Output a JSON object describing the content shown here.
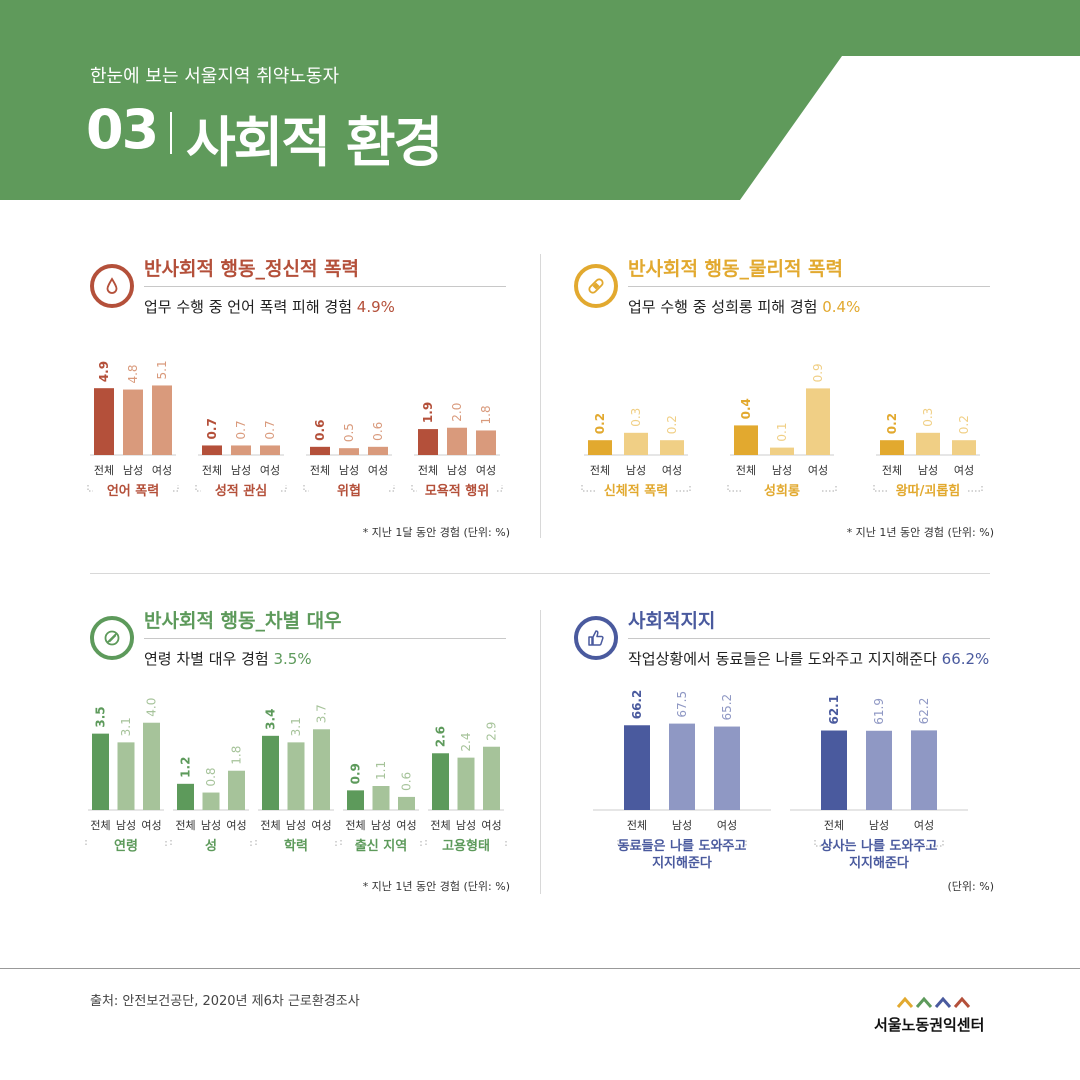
{
  "header": {
    "subtitle": "한눈에 보는 서울지역 취약노동자",
    "number": "03",
    "title": "사회적 환경"
  },
  "colors": {
    "header_green": "#5f9a5b",
    "red_dark": "#b4503a",
    "red_light": "#d99a7c",
    "yellow_dark": "#e2a92f",
    "yellow_light": "#f0cf85",
    "green_dark": "#5d9a5b",
    "green_light": "#a6c39a",
    "blue_dark": "#4a5a9e",
    "blue_light": "#8f98c4"
  },
  "panels": [
    {
      "id": "mental",
      "icon": "drop-icon",
      "color": "#b4503a",
      "title": "반사회적 행동_정신적 폭력",
      "stat_text": "업무 수행 중 언어 폭력 피해 경험",
      "stat_value": "4.9%",
      "note": "* 지난 1달 동안 경험 (단위: %)"
    },
    {
      "id": "physical",
      "icon": "bandage-icon",
      "color": "#e2a92f",
      "title": "반사회적 행동_물리적 폭력",
      "stat_text": "업무 수행 중 성희롱 피해 경험",
      "stat_value": "0.4%",
      "note": "* 지난 1년 동안 경험 (단위: %)"
    },
    {
      "id": "discrimination",
      "icon": "prohibit-icon",
      "color": "#5d9a5b",
      "title": "반사회적 행동_차별 대우",
      "stat_text": "연령 차별 대우 경험",
      "stat_value": "3.5%",
      "note": "* 지난 1년 동안 경험 (단위: %)"
    },
    {
      "id": "support",
      "icon": "thumbs-up-icon",
      "color": "#4a5a9e",
      "title": "사회적지지",
      "stat_text": "작업상황에서 동료들은 나를 도와주고 지지해준다",
      "stat_value": "66.2%",
      "note": "(단위: %)"
    }
  ],
  "chart_data": [
    {
      "type": "bar",
      "series_labels": [
        "전체",
        "남성",
        "여성"
      ],
      "groups": [
        {
          "label": [
            "언어 폭력"
          ],
          "values": [
            4.9,
            4.8,
            5.1
          ]
        },
        {
          "label": [
            "성적 관심"
          ],
          "values": [
            0.7,
            0.7,
            0.7
          ]
        },
        {
          "label": [
            "위협"
          ],
          "values": [
            0.6,
            0.5,
            0.6
          ]
        },
        {
          "label": [
            "모욕적 행위"
          ],
          "values": [
            1.9,
            2.0,
            1.8
          ]
        }
      ],
      "ylim": [
        0,
        5.5
      ]
    },
    {
      "type": "bar",
      "series_labels": [
        "전체",
        "남성",
        "여성"
      ],
      "groups": [
        {
          "label": [
            "신체적 폭력"
          ],
          "values": [
            0.2,
            0.3,
            0.2
          ]
        },
        {
          "label": [
            "성희롱"
          ],
          "values": [
            0.4,
            0.1,
            0.9
          ]
        },
        {
          "label": [
            "왕따/괴롭힘"
          ],
          "values": [
            0.2,
            0.3,
            0.2
          ]
        }
      ],
      "ylim": [
        0,
        1.0
      ]
    },
    {
      "type": "bar",
      "series_labels": [
        "전체",
        "남성",
        "여성"
      ],
      "groups": [
        {
          "label": [
            "연령"
          ],
          "values": [
            3.5,
            3.1,
            4.0
          ]
        },
        {
          "label": [
            "성"
          ],
          "values": [
            1.2,
            0.8,
            1.8
          ]
        },
        {
          "label": [
            "학력"
          ],
          "values": [
            3.4,
            3.1,
            3.7
          ]
        },
        {
          "label": [
            "출신 지역"
          ],
          "values": [
            0.9,
            1.1,
            0.6
          ]
        },
        {
          "label": [
            "고용형태"
          ],
          "values": [
            2.6,
            2.4,
            2.9
          ]
        }
      ],
      "ylim": [
        0,
        4.4
      ]
    },
    {
      "type": "bar",
      "series_labels": [
        "전체",
        "남성",
        "여성"
      ],
      "groups": [
        {
          "label": [
            "동료들은 나를 도와주고",
            "지지해준다"
          ],
          "values": [
            66.2,
            67.5,
            65.2
          ]
        },
        {
          "label": [
            "상사는 나를 도와주고",
            "지지해준다"
          ],
          "values": [
            62.1,
            61.9,
            62.2
          ]
        }
      ],
      "ylim": [
        0,
        75
      ]
    }
  ],
  "footer": {
    "source": "출처: 안전보건공단, 2020년 제6차 근로환경조사",
    "logo_text": "서울노동권익센터"
  }
}
